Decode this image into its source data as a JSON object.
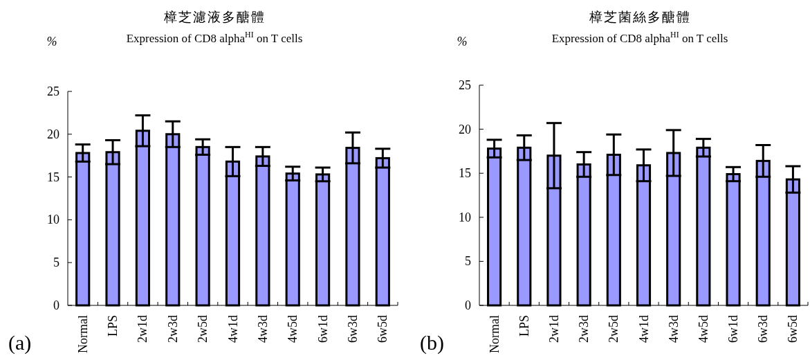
{
  "chart_data": [
    {
      "type": "bar",
      "title": "樟芝濾液多醣體",
      "subtitle": "Expression of CD8 alpha$^{HI}$ on T cells",
      "ylabel": "%",
      "annotations": [
        "(a)"
      ],
      "categories": [
        "Normal",
        "LPS",
        "2w1d",
        "2w3d",
        "2w5d",
        "4w1d",
        "4w3d",
        "4w5d",
        "6w1d",
        "6w3d",
        "6w5d"
      ],
      "values": [
        17.8,
        17.9,
        20.4,
        20.0,
        18.5,
        16.8,
        17.4,
        15.4,
        15.3,
        18.4,
        17.2
      ],
      "errors": [
        1.0,
        1.4,
        1.8,
        1.5,
        0.9,
        1.7,
        1.1,
        0.8,
        0.8,
        1.8,
        1.1
      ],
      "color": "#9999ff",
      "ylim": [
        0,
        25
      ],
      "yticks": [
        0,
        5,
        10,
        15,
        20,
        25
      ]
    },
    {
      "type": "bar",
      "title": "樟芝菌絲多醣體",
      "subtitle": "Expression of CD8 alpha$^{HI}$ on T cells",
      "ylabel": "%",
      "annotations": [
        "(b)"
      ],
      "categories": [
        "Normal",
        "LPS",
        "2w1d",
        "2w3d",
        "2w5d",
        "4w1d",
        "4w3d",
        "4w5d",
        "6w1d",
        "6w3d",
        "6w5d"
      ],
      "values": [
        17.8,
        17.9,
        17.0,
        16.0,
        17.1,
        15.9,
        17.3,
        17.9,
        14.9,
        16.4,
        14.3
      ],
      "errors": [
        1.0,
        1.4,
        3.7,
        1.4,
        2.3,
        1.8,
        2.6,
        1.0,
        0.8,
        1.8,
        1.5
      ],
      "color": "#9999ff",
      "ylim": [
        0,
        25
      ],
      "yticks": [
        0,
        5,
        10,
        15,
        20,
        25
      ]
    }
  ]
}
